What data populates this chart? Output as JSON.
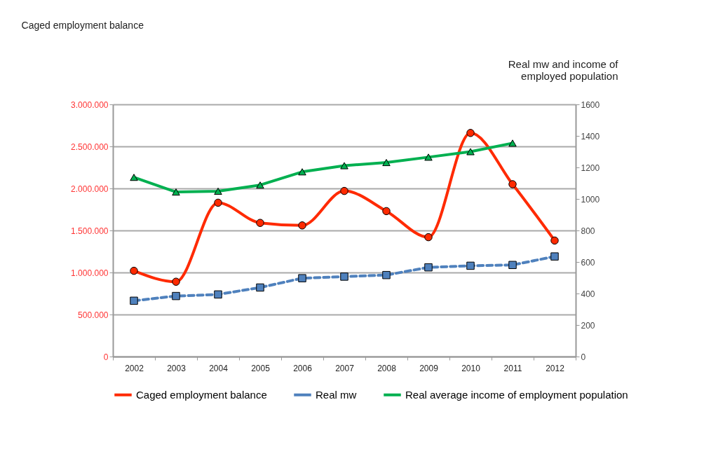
{
  "chart_data": {
    "type": "line",
    "annotations": [
      "Caged employment balance"
    ],
    "y2label": "Real mw and income of employed population",
    "categories": [
      "2002",
      "2003",
      "2004",
      "2005",
      "2006",
      "2007",
      "2008",
      "2009",
      "2010",
      "2011",
      "2012"
    ],
    "series": [
      {
        "name": "Caged employment balance",
        "color": "#ff2a00",
        "marker": "circle",
        "line_style": "solid",
        "values": [
          1020000,
          890000,
          1830000,
          1590000,
          1560000,
          1970000,
          1730000,
          1420000,
          2660000,
          2050000,
          1380000
        ]
      },
      {
        "name": "Real mw",
        "color": "#4f81bd",
        "marker": "square",
        "line_style": "dashed",
        "axis": "y2",
        "values": [
          354,
          384,
          394,
          438,
          497,
          507,
          517,
          566,
          576,
          581,
          635
        ]
      },
      {
        "name": "Real average income of employment population",
        "color": "#00b050",
        "marker": "triangle",
        "line_style": "solid",
        "axis": "y2",
        "values": [
          1137,
          1044,
          1049,
          1088,
          1172,
          1211,
          1231,
          1265,
          1300,
          1354,
          null
        ]
      }
    ],
    "ylim": [
      0,
      3000000
    ],
    "yticks": [
      {
        "value": 0,
        "label": "0"
      },
      {
        "value": 500000,
        "label": "500.000"
      },
      {
        "value": 1000000,
        "label": "1.000.000"
      },
      {
        "value": 1500000,
        "label": "1.500.000"
      },
      {
        "value": 2000000,
        "label": "2.000.000"
      },
      {
        "value": 2500000,
        "label": "2.500.000"
      },
      {
        "value": 3000000,
        "label": "3.000.000"
      }
    ],
    "y2lim": [
      0,
      1600
    ],
    "y2ticks": [
      0,
      200,
      400,
      600,
      800,
      1000,
      1200,
      1400,
      1600
    ],
    "grid": "y",
    "legend": "bottom"
  }
}
